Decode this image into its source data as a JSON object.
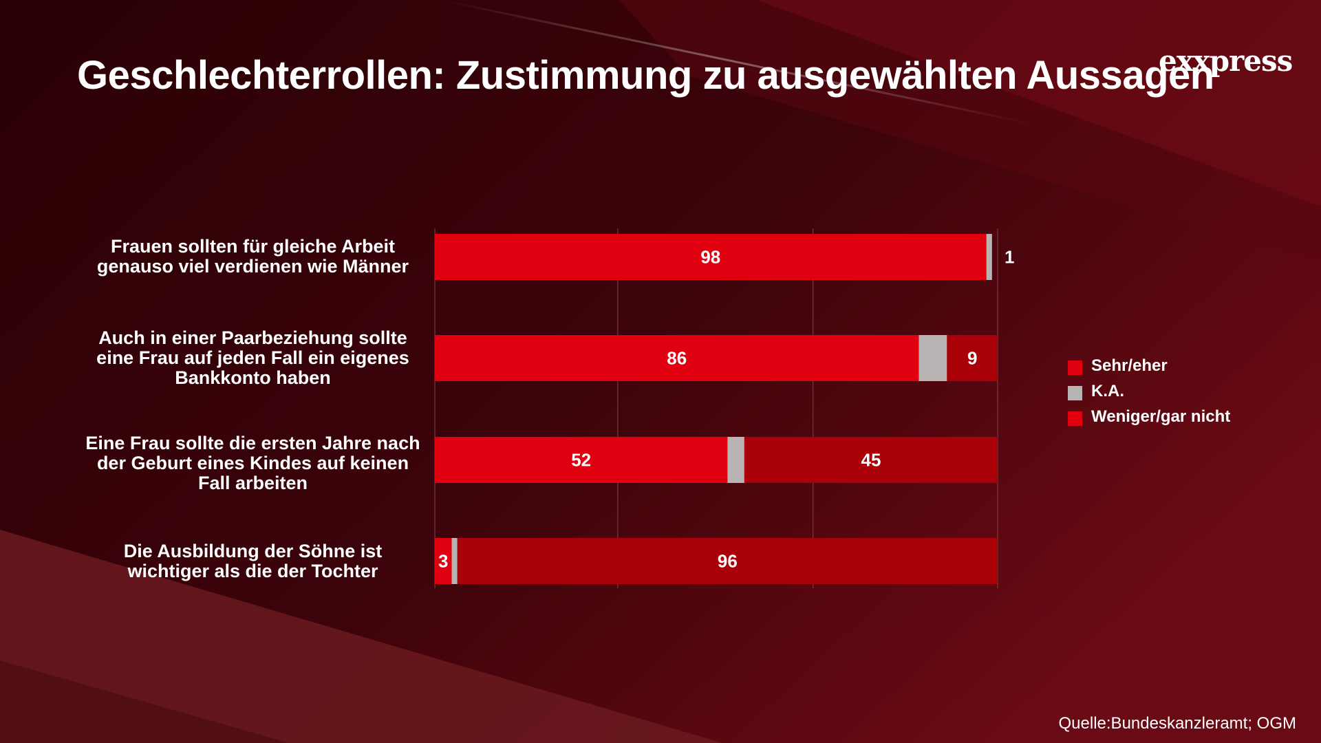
{
  "title": "Geschlechterrollen: Zustimmung zu ausgewählten Aussagen",
  "logo": "exxpress",
  "source": "Quelle:Bundeskanzleramt; OGM",
  "colors": {
    "sehr_eher": "#e0000f",
    "ka": "#b8b4b4",
    "weniger": "#aa0008",
    "background": "#2e0206"
  },
  "legend": [
    {
      "label": "Sehr/eher",
      "color": "#e0000f"
    },
    {
      "label": "K.A.",
      "color": "#b8b4b4"
    },
    {
      "label": "Weniger/gar nicht",
      "color": "#e0000f"
    }
  ],
  "chart_data": {
    "type": "bar",
    "orientation": "horizontal",
    "stacked": true,
    "xlim": [
      0,
      100
    ],
    "grid": true,
    "legend_position": "right",
    "categories": [
      "Frauen sollten für gleiche Arbeit genauso viel verdienen wie Männer",
      "Auch in einer Paarbeziehung sollte eine Frau auf jeden Fall ein eigenes Bankkonto haben",
      "Eine Frau sollte die ersten Jahre nach der Geburt eines Kindes auf keinen Fall arbeiten",
      "Die Ausbildung der Söhne ist wichtiger als die der Tochter"
    ],
    "series": [
      {
        "name": "Sehr/eher",
        "values": [
          98,
          86,
          52,
          3
        ],
        "labels": [
          "98",
          "86",
          "52",
          "3"
        ],
        "color": "#e0000f"
      },
      {
        "name": "K.A.",
        "values": [
          1,
          5,
          3,
          1
        ],
        "labels": [
          "",
          "",
          "",
          ""
        ],
        "color": "#b8b4b4"
      },
      {
        "name": "Weniger/gar nicht",
        "values": [
          1,
          9,
          45,
          96
        ],
        "labels": [
          "1",
          "9",
          "45",
          "96"
        ],
        "color": "#aa0008"
      }
    ]
  }
}
